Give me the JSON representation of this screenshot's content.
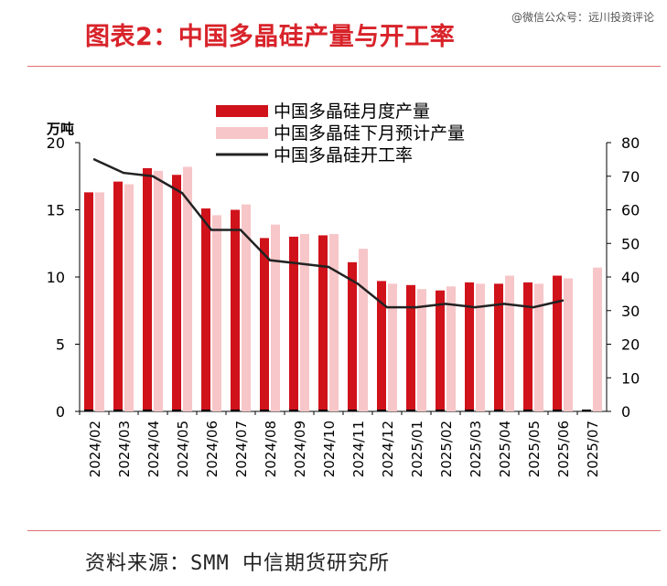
{
  "title": "图表2：中国多晶硅产量与开工率",
  "watermark": "@微信公众号：远川投资评论",
  "source": "资料来源：SMM 中信期货研究所",
  "colors": {
    "monthly": "#d0121b",
    "forecast": "#f7c6c8",
    "rate": "#222222",
    "title": "#d8232a"
  },
  "chart_data": {
    "type": "bar",
    "y_unit_label": "万吨",
    "categories": [
      "2024/02",
      "2024/03",
      "2024/04",
      "2024/05",
      "2024/06",
      "2024/07",
      "2024/08",
      "2024/09",
      "2024/10",
      "2024/11",
      "2024/12",
      "2025/01",
      "2025/02",
      "2025/03",
      "2025/04",
      "2025/05",
      "2025/06",
      "2025/07"
    ],
    "series": [
      {
        "name": "中国多晶硅月度产量",
        "type": "bar",
        "axis": "left",
        "values": [
          16.3,
          17.1,
          18.1,
          17.6,
          15.1,
          15.0,
          12.9,
          13.0,
          13.1,
          11.1,
          9.7,
          9.4,
          9.0,
          9.6,
          9.5,
          9.6,
          10.1,
          null
        ]
      },
      {
        "name": "中国多晶硅下月预计产量",
        "type": "bar",
        "axis": "left",
        "values": [
          16.3,
          16.9,
          17.9,
          18.2,
          14.6,
          15.4,
          13.9,
          13.2,
          13.2,
          12.1,
          9.5,
          9.1,
          9.3,
          9.5,
          10.1,
          9.5,
          9.9,
          10.7
        ]
      },
      {
        "name": "中国多晶硅开工率",
        "type": "line",
        "axis": "right",
        "values": [
          75,
          71,
          70,
          65,
          54,
          54,
          45,
          44,
          43,
          38,
          31,
          31,
          32,
          31,
          32,
          31,
          33,
          null
        ]
      }
    ],
    "ylim_left": [
      0,
      20
    ],
    "yticks_left": [
      0,
      5,
      10,
      15,
      20
    ],
    "ylim_right": [
      0,
      80
    ],
    "yticks_right": [
      0,
      10,
      20,
      30,
      40,
      50,
      60,
      70,
      80
    ],
    "legend_position": "top-center",
    "grid": false
  }
}
